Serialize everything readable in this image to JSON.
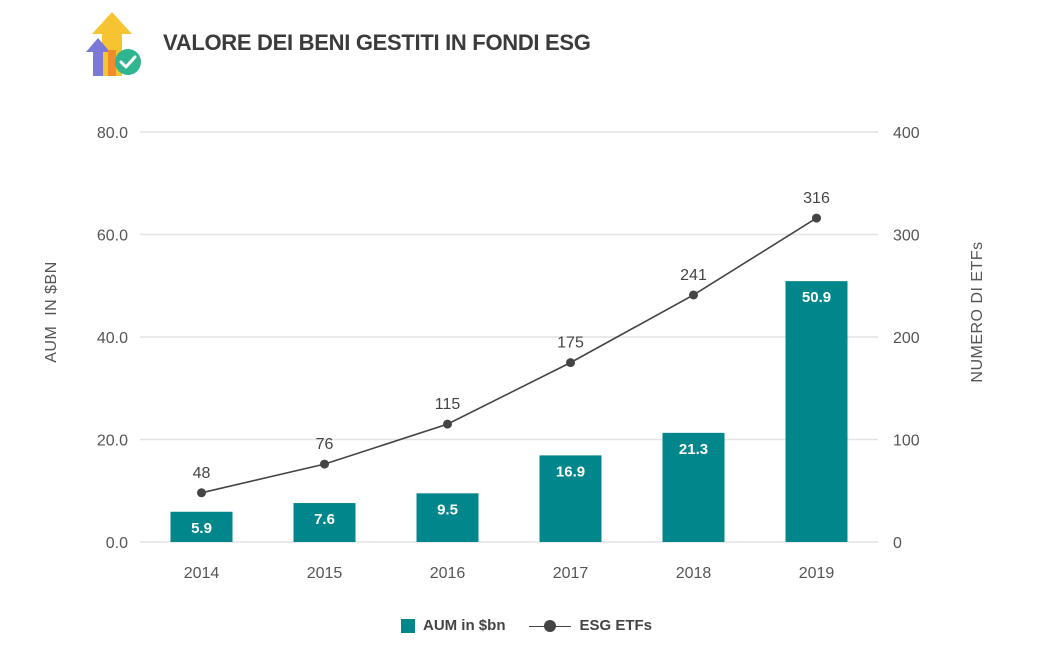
{
  "title": "VALORE DEI BENI GESTITI IN FONDI ESG",
  "colors": {
    "bar": "#00868b",
    "line": "#444444",
    "grid": "#e3e3e3"
  },
  "legend": {
    "bars": "AUM in $bn",
    "line": "ESG ETFs"
  },
  "chart_data": {
    "type": "bar",
    "categories": [
      "2014",
      "2015",
      "2016",
      "2017",
      "2018",
      "2019"
    ],
    "series": [
      {
        "name": "AUM in $bn",
        "type": "bar",
        "axis": "left",
        "values": [
          5.9,
          7.6,
          9.5,
          16.9,
          21.3,
          50.9
        ]
      },
      {
        "name": "ESG ETFs",
        "type": "line",
        "axis": "right",
        "values": [
          48,
          76,
          115,
          175,
          241,
          316
        ]
      }
    ],
    "ylabel": "AUM  IN $BN",
    "y2label": "NUMERO DI ETFs",
    "ylim": [
      0,
      80
    ],
    "y2lim": [
      0,
      400
    ],
    "yticks": [
      "0.0",
      "20.0",
      "40.0",
      "60.0",
      "80.0"
    ],
    "y2ticks": [
      "0",
      "100",
      "200",
      "300",
      "400"
    ],
    "grid": true,
    "legend_position": "bottom"
  }
}
